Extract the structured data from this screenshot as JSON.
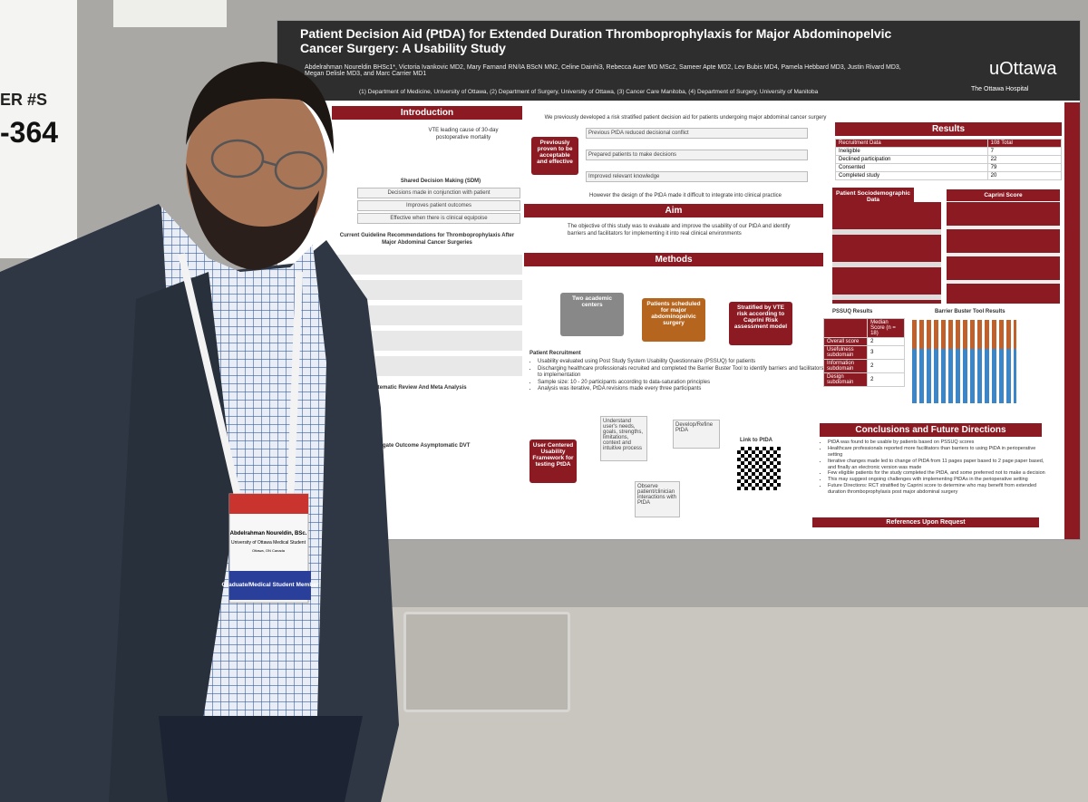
{
  "sign": {
    "label": "ER #S",
    "number": "-364"
  },
  "poster": {
    "title": "Patient Decision Aid (PtDA) for Extended Duration Thromboprophylaxis for Major Abdominopelvic Cancer Surgery: A Usability Study",
    "authors": "Abdelrahman Noureldin BHSc1*, Victoria Ivankovic MD2, Mary Farnand RN/IA BScN MN2, Celine Dainhi3, Rebecca Auer MD MSc2, Sameer Apte MD2, Lev Bubis MD4, Pamela Hebbard MD3, Justin Rivard MD3, Megan Delisle MD3, and Marc Carrier MD1",
    "affiliations": "(1) Department of Medicine, University of Ottawa, (2) Department of Surgery, University of Ottawa, (3) Cancer Care Manitoba, (4) Department of Surgery, University of Manitoba",
    "logo": "uOttawa",
    "hospital": "The Ottawa Hospital",
    "introduction": {
      "heading": "Introduction",
      "vte": "VTE leading cause of 30-day postoperative mortality",
      "sdm": "Shared Decision Making (SDM)",
      "sdm_items": [
        "Decisions made in conjunction with patient",
        "Improves patient outcomes",
        "Effective when there is clinical equipoise"
      ],
      "guidelines": "Current Guideline Recommendations for Thromboprophylaxis After Major Abdominal Cancer Surgeries",
      "review": "Systematic Review And Meta Analysis",
      "surrogate": "Surrogate Outcome Asymptomatic DVT"
    },
    "background": {
      "text": "We previously developed a risk stratified patient decision aid for patients undergoing major abdominal cancer surgery",
      "proven": "Previously proven to be acceptable and effective",
      "items": [
        "Previous PtDA reduced decisional conflict",
        "Prepared patients to make decisions",
        "Improved relevant knowledge"
      ],
      "however": "However the design of the PtDA made it difficult to integrate into clinical practice"
    },
    "aim": {
      "heading": "Aim",
      "text": "The objective of this study was to evaluate and improve the usability of our PtDA and identify barriers and facilitators for implementing it into real clinical environments"
    },
    "methods": {
      "heading": "Methods",
      "boxes": [
        "Two academic centers",
        "Patients scheduled for major abdominopelvic surgery",
        "Stratified by VTE risk according to Caprini Risk assessment model"
      ],
      "recruitment": "Patient Recruitment",
      "bullets": [
        "Usability evaluated using Post Study System Usability Questionnaire (PSSUQ) for patients",
        "Discharging healthcare professionals recruited and completed the Barrier Buster Tool to identify barriers and facilitators to implementation",
        "Sample size: 10 - 20 participants according to data-saturation principles",
        "Analysis was iterative, PtDA revisions made every three participants"
      ],
      "framework": "User Centered Usability Framework for testing PtDA",
      "cycle": [
        "Understand user's needs, goals, strengths, limitations, context and intuitive process",
        "Develop/Refine PtDA",
        "Observe patient/clinician interactions with PtDA"
      ],
      "link": "Link to PtDA"
    },
    "results": {
      "heading": "Results",
      "recruitment": {
        "header": [
          "Recruitment Data",
          "108 Total"
        ],
        "rows": [
          [
            "Ineligible",
            "7"
          ],
          [
            "Declined participation",
            "22"
          ],
          [
            "Consented",
            "79"
          ],
          [
            "Completed study",
            "20"
          ]
        ]
      },
      "pssuq": {
        "title": "PSSUQ Results",
        "header": [
          "",
          "Median Score (n = 18)"
        ],
        "rows": [
          [
            "Overall score",
            "2"
          ],
          [
            "Usefulness subdomain",
            "3"
          ],
          [
            "Information subdomain",
            "2"
          ],
          [
            "Design subdomain",
            "2"
          ]
        ]
      },
      "barrier": "Barrier Buster Tool Results",
      "demographics": "Patient Sociodemographic Data",
      "caprini": "Caprini Score"
    },
    "conclusions": {
      "heading": "Conclusions and Future Directions",
      "bullets": [
        "PtDA was found to be usable by patients based on PSSUQ scores",
        "Healthcare professionals reported more facilitators than barriers to using PtDA in perioperative setting",
        "Iterative changes made led to change of PtDA from 11 pages paper based to 2 page paper based, and finally an electronic version was made",
        "Few eligible patients for the study completed the PtDA, and some preferred not to make a decision",
        "This may suggest ongoing challenges with implementing PtDAs in the perioperative setting",
        "Future Directions: RCT stratified by Caprini score to determine who may benefit from extended duration thromboprophylaxis post major abdominal surgery"
      ],
      "references": "References Upon Request"
    }
  },
  "badge": {
    "name": "Abdelrahman Noureldin, BSc.",
    "org": "University of Ottawa Medical Student",
    "city": "Ottawa, ON Canada",
    "member": "Graduate/Medical Student Member"
  }
}
